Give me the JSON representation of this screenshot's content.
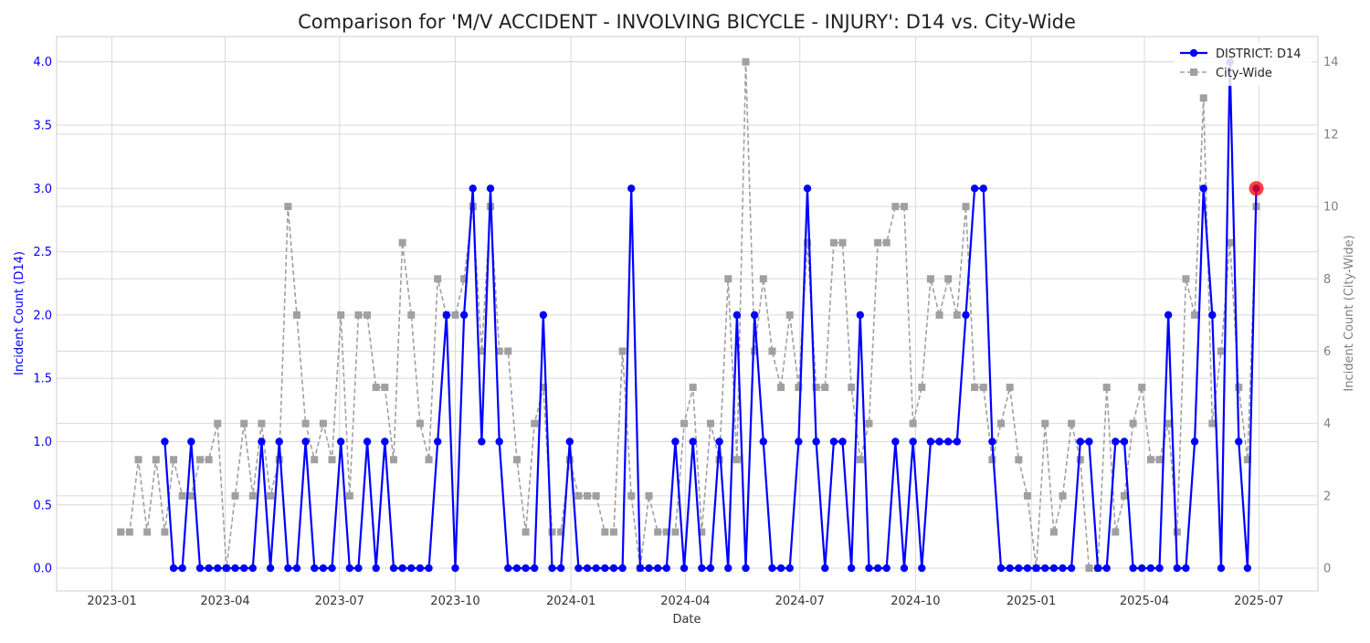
{
  "chart_data": {
    "type": "line",
    "title": "Comparison for 'M/V ACCIDENT - INVOLVING BICYCLE - INJURY': D14 vs. City-Wide",
    "xlabel": "Date",
    "ylabel_left": "Incident Count (D14)",
    "ylabel_right": "Incident Count (City-Wide)",
    "x_ticks": [
      "2023-01",
      "2023-04",
      "2023-07",
      "2023-10",
      "2024-01",
      "2024-04",
      "2024-07",
      "2024-10",
      "2025-01",
      "2025-04",
      "2025-07"
    ],
    "x_range": [
      "2022-11-18",
      "2025-08-17"
    ],
    "ylim_left": [
      -0.18,
      4.2
    ],
    "ylim_right": [
      -0.63,
      14.7
    ],
    "yticks_left": [
      "0.0",
      "0.5",
      "1.0",
      "1.5",
      "2.0",
      "2.5",
      "3.0",
      "3.5",
      "4.0"
    ],
    "yticks_right": [
      "0",
      "2",
      "4",
      "6",
      "8",
      "10",
      "12",
      "14"
    ],
    "grid": true,
    "legend_position": "top-right",
    "colors": {
      "district": "#0000ff",
      "city": "#a0a0a0",
      "highlight": "#ff0000"
    },
    "highlight_point": {
      "date": "2025-06-29",
      "value": 3
    },
    "series": [
      {
        "name": "DISTRICT: D14",
        "axis": "left",
        "start_date": "2023-02-12",
        "values": [
          1,
          0,
          0,
          1,
          0,
          0,
          0,
          0,
          0,
          0,
          0,
          1,
          0,
          1,
          0,
          0,
          1,
          0,
          0,
          0,
          1,
          0,
          0,
          1,
          0,
          1,
          0,
          0,
          0,
          0,
          0,
          1,
          2,
          0,
          2,
          3,
          1,
          3,
          1,
          0,
          0,
          0,
          0,
          2,
          0,
          0,
          1,
          0,
          0,
          0,
          0,
          0,
          0,
          3,
          0,
          0,
          0,
          0,
          1,
          0,
          1,
          0,
          0,
          1,
          0,
          2,
          0,
          2,
          1,
          0,
          0,
          0,
          1,
          3,
          1,
          0,
          1,
          1,
          0,
          2,
          0,
          0,
          0,
          1,
          0,
          1,
          0,
          1,
          1,
          1,
          1,
          2,
          3,
          3,
          1,
          0,
          0,
          0,
          0,
          0,
          0,
          0,
          0,
          0,
          1,
          1,
          0,
          0,
          1,
          1,
          0,
          0,
          0,
          0,
          2,
          0,
          0,
          1,
          3,
          2,
          0,
          4,
          1,
          0,
          3
        ]
      },
      {
        "name": "City-Wide",
        "axis": "right",
        "start_date": "2023-01-08",
        "values": [
          1,
          1,
          3,
          1,
          3,
          1,
          3,
          2,
          2,
          3,
          3,
          4,
          0,
          2,
          4,
          2,
          4,
          2,
          3,
          10,
          7,
          4,
          3,
          4,
          3,
          7,
          2,
          7,
          7,
          5,
          5,
          3,
          9,
          7,
          4,
          3,
          8,
          7,
          7,
          8,
          10,
          6,
          10,
          6,
          6,
          3,
          1,
          4,
          5,
          1,
          1,
          3,
          2,
          2,
          2,
          1,
          1,
          6,
          2,
          0,
          2,
          1,
          1,
          1,
          4,
          5,
          1,
          4,
          3,
          8,
          3,
          14,
          6,
          8,
          6,
          5,
          7,
          5,
          9,
          5,
          5,
          9,
          9,
          5,
          3,
          4,
          9,
          9,
          10,
          10,
          4,
          5,
          8,
          7,
          8,
          7,
          10,
          5,
          5,
          3,
          4,
          5,
          3,
          2,
          0,
          4,
          1,
          2,
          4,
          3,
          0,
          0,
          5,
          1,
          2,
          4,
          5,
          3,
          3,
          4,
          1,
          8,
          7,
          13,
          4,
          6,
          9,
          5,
          3,
          10
        ]
      }
    ]
  }
}
